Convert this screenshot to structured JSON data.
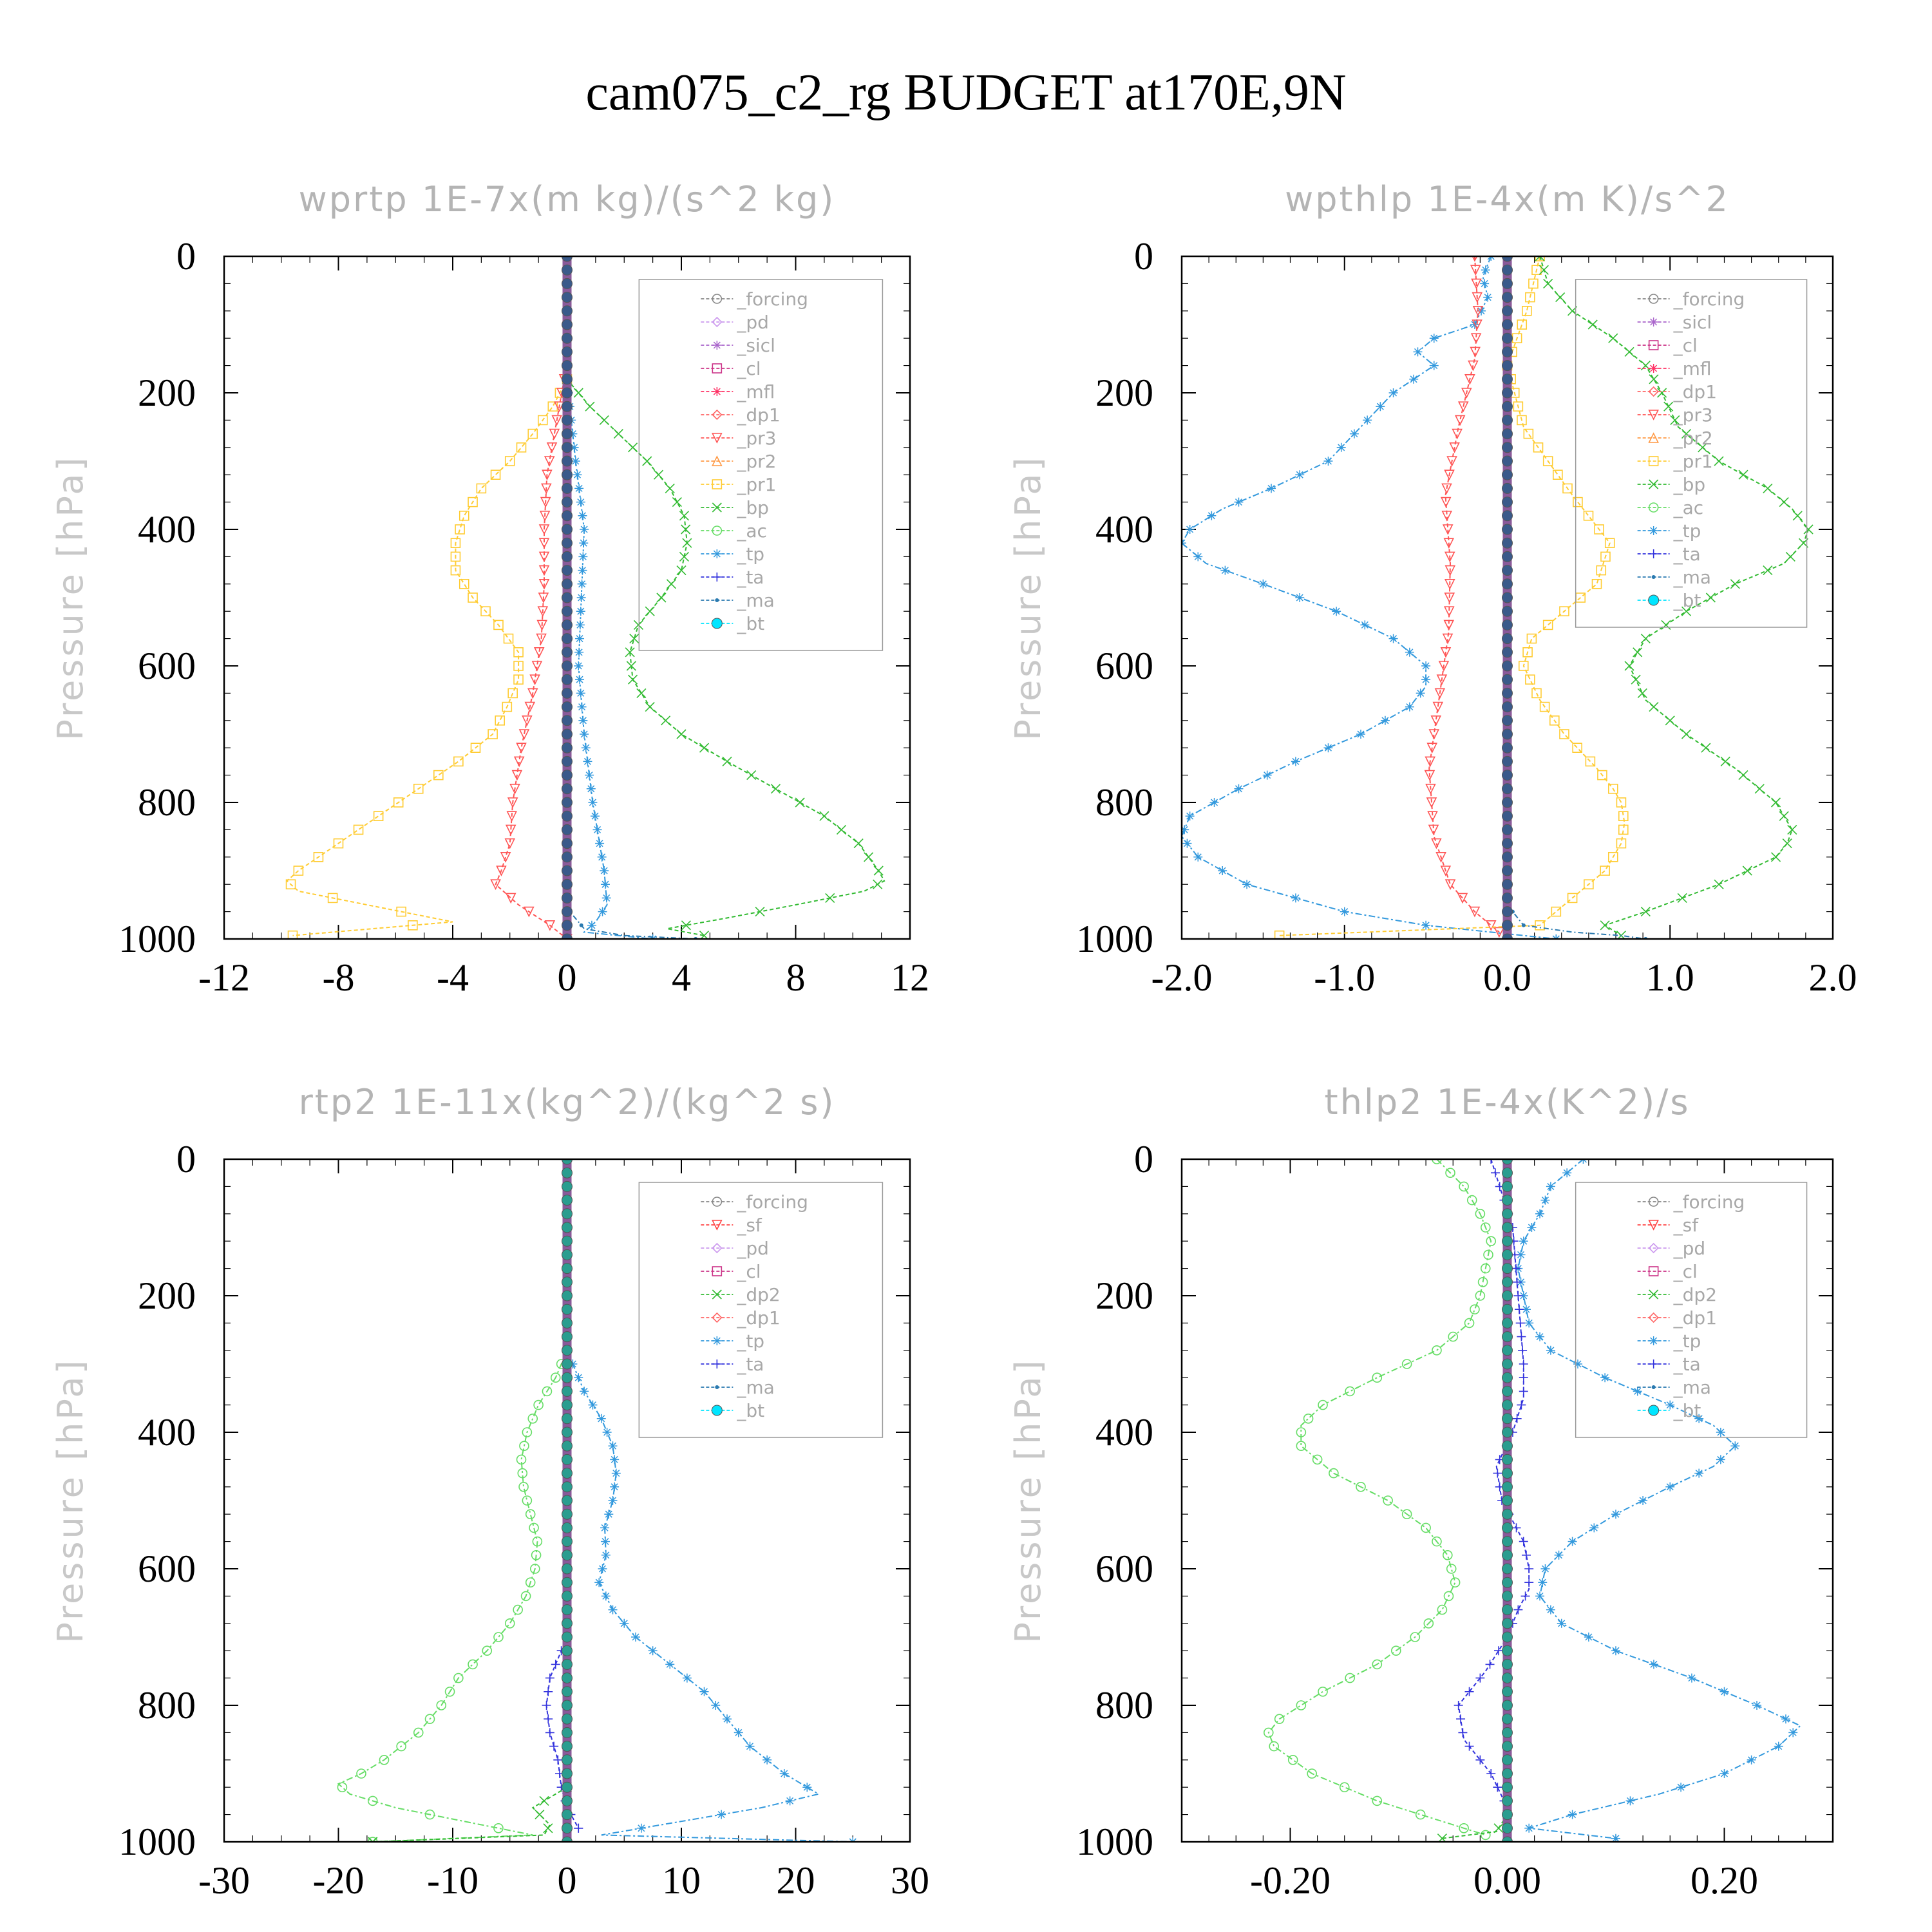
{
  "page": {
    "title": "cam075_c2_rg  BUDGET at170E,9N"
  },
  "chart_data": [
    {
      "type": "line",
      "title": "wprtp  1E-7x(m kg)/(s^2 kg)",
      "ylabel": "Pressure [hPa]",
      "xlim": [
        -12,
        12
      ],
      "ylim": [
        1000,
        0
      ],
      "xticks": [
        -12,
        -8,
        -4,
        0,
        4,
        8,
        12
      ],
      "xtick_labels": [
        "-12",
        "-8",
        "-4",
        "0",
        "4",
        "8",
        "12"
      ],
      "yticks": [
        0,
        200,
        400,
        600,
        800,
        1000
      ],
      "ytick_labels": [
        "0",
        "200",
        "400",
        "600",
        "800",
        "1000"
      ],
      "legend_position": "top-right",
      "legend": [
        "_forcing",
        "_pd",
        "_sicl",
        "_cl",
        "_mfl",
        "_dp1",
        "_pr3",
        "_pr2",
        "_pr1",
        "_bp",
        "_ac",
        "_tp",
        "_ta",
        "_ma",
        "_bt"
      ],
      "series": [
        {
          "name": "_pr1",
          "color": "#ffcc33",
          "marker": "square",
          "dash": "6,4",
          "pressure": [
            180,
            220,
            260,
            300,
            340,
            380,
            420,
            460,
            500,
            540,
            580,
            620,
            660,
            700,
            740,
            780,
            820,
            860,
            900,
            915,
            930,
            950,
            975,
            995
          ],
          "values": [
            0,
            -0.5,
            -1.2,
            -2,
            -3,
            -3.6,
            -3.9,
            -3.9,
            -3.3,
            -2.4,
            -1.7,
            -1.7,
            -2.1,
            -2.6,
            -3.8,
            -5.2,
            -6.6,
            -8,
            -9.4,
            -9.8,
            -9.4,
            -7,
            -4,
            -9.6
          ]
        },
        {
          "name": "_pr3",
          "color": "#ff5555",
          "marker": "triangle-down",
          "dash": "6,4",
          "pressure": [
            180,
            250,
            320,
            400,
            480,
            560,
            640,
            720,
            800,
            860,
            900,
            920,
            950,
            980,
            1000
          ],
          "values": [
            -0.1,
            -0.4,
            -0.7,
            -0.8,
            -0.8,
            -0.9,
            -1.2,
            -1.6,
            -1.9,
            -2,
            -2.3,
            -2.5,
            -1.7,
            -0.6,
            0
          ]
        },
        {
          "name": "_bp",
          "color": "#33bb33",
          "marker": "x",
          "dash": "6,4",
          "pressure": [
            180,
            220,
            260,
            300,
            340,
            380,
            420,
            460,
            500,
            540,
            580,
            620,
            660,
            700,
            740,
            780,
            820,
            860,
            900,
            915,
            930,
            950,
            970,
            985,
            995
          ],
          "values": [
            0,
            0.8,
            1.8,
            2.8,
            3.6,
            4.1,
            4.2,
            4,
            3.3,
            2.5,
            2.2,
            2.3,
            2.9,
            4,
            5.6,
            7.3,
            9,
            10.2,
            10.9,
            11.1,
            10.4,
            8,
            5.5,
            3.5,
            4.8
          ]
        },
        {
          "name": "_tp",
          "color": "#3399dd",
          "marker": "asterisk",
          "dash": "10,4,3,4",
          "pressure": [
            180,
            300,
            400,
            500,
            600,
            700,
            800,
            900,
            950,
            975,
            990,
            1000
          ],
          "values": [
            0,
            0.3,
            0.6,
            0.5,
            0.4,
            0.6,
            0.9,
            1.3,
            1.4,
            1,
            0.6,
            3
          ]
        },
        {
          "name": "_ma",
          "color": "#2a7ab0",
          "marker": "dot",
          "dash": "8,4,2,4",
          "pressure": [
            900,
            960,
            985,
            995,
            1000
          ],
          "values": [
            0,
            0.1,
            0.6,
            2,
            4.5
          ]
        },
        {
          "name": "_bt",
          "color": "#3a5a8a",
          "marker": "circle-filled",
          "dash": "",
          "pressure": [
            0,
            1000
          ],
          "values": [
            0,
            0
          ]
        }
      ]
    },
    {
      "type": "line",
      "title": "wpthlp  1E-4x(m K)/s^2",
      "ylabel": "Pressure [hPa]",
      "xlim": [
        -2.0,
        2.0
      ],
      "ylim": [
        1000,
        0
      ],
      "xticks": [
        -2,
        -1,
        0,
        1,
        2
      ],
      "xtick_labels": [
        "-2.0",
        "-1.0",
        "0.0",
        "1.0",
        "2.0"
      ],
      "yticks": [
        0,
        200,
        400,
        600,
        800,
        1000
      ],
      "ytick_labels": [
        "0",
        "200",
        "400",
        "600",
        "800",
        "1000"
      ],
      "legend_position": "top-right",
      "legend": [
        "_forcing",
        "_sicl",
        "_cl",
        "_mfl",
        "_dp1",
        "_pr3",
        "_pr2",
        "_pr1",
        "_bp",
        "_ac",
        "_tp",
        "_ta",
        "_ma",
        "_bt"
      ],
      "series": [
        {
          "name": "_tp",
          "color": "#3399dd",
          "marker": "asterisk",
          "dash": "10,4,3,4",
          "pressure": [
            0,
            30,
            60,
            100,
            120,
            140,
            160,
            200,
            250,
            300,
            340,
            370,
            400,
            420,
            450,
            480,
            520,
            560,
            600,
            630,
            660,
            700,
            740,
            780,
            820,
            850,
            880,
            920,
            960,
            980,
            990,
            1000
          ],
          "values": [
            -0.1,
            -0.15,
            -0.12,
            -0.2,
            -0.45,
            -0.55,
            -0.45,
            -0.7,
            -0.9,
            -1.1,
            -1.45,
            -1.75,
            -1.95,
            -2,
            -1.85,
            -1.5,
            -1.05,
            -0.7,
            -0.5,
            -0.5,
            -0.6,
            -0.9,
            -1.3,
            -1.65,
            -1.95,
            -2,
            -1.9,
            -1.6,
            -1,
            -0.5,
            -0.1,
            0.3
          ]
        },
        {
          "name": "_pr3",
          "color": "#ff5555",
          "marker": "triangle-down",
          "dash": "6,4",
          "pressure": [
            0,
            80,
            150,
            250,
            350,
            450,
            550,
            650,
            750,
            850,
            920,
            960,
            990
          ],
          "values": [
            -0.2,
            -0.18,
            -0.2,
            -0.3,
            -0.38,
            -0.35,
            -0.36,
            -0.42,
            -0.48,
            -0.45,
            -0.35,
            -0.2,
            -0.05
          ]
        },
        {
          "name": "_pr1",
          "color": "#ffcc33",
          "marker": "square",
          "dash": "6,4",
          "pressure": [
            0,
            80,
            160,
            250,
            350,
            420,
            480,
            520,
            560,
            600,
            650,
            700,
            750,
            780,
            800,
            830,
            860,
            900,
            930,
            960,
            980,
            995
          ],
          "values": [
            0.2,
            0.12,
            0,
            0.1,
            0.4,
            0.63,
            0.55,
            0.35,
            0.15,
            0.1,
            0.2,
            0.35,
            0.55,
            0.65,
            0.7,
            0.72,
            0.7,
            0.6,
            0.45,
            0.3,
            0.2,
            -1.4
          ]
        },
        {
          "name": "_bp",
          "color": "#33bb33",
          "marker": "x",
          "dash": "6,4",
          "pressure": [
            0,
            40,
            80,
            120,
            160,
            200,
            250,
            300,
            340,
            370,
            400,
            420,
            450,
            480,
            520,
            560,
            600,
            650,
            700,
            750,
            800,
            840,
            860,
            880,
            920,
            960,
            980,
            995
          ],
          "values": [
            0.2,
            0.25,
            0.4,
            0.65,
            0.85,
            0.95,
            1.05,
            1.3,
            1.6,
            1.75,
            1.85,
            1.82,
            1.7,
            1.4,
            1.1,
            0.85,
            0.75,
            0.85,
            1.1,
            1.4,
            1.65,
            1.75,
            1.72,
            1.65,
            1.3,
            0.85,
            0.6,
            0.7
          ]
        },
        {
          "name": "_ma",
          "color": "#2a7ab0",
          "marker": "dot",
          "dash": "8,4,2,4",
          "pressure": [
            950,
            980,
            990,
            995,
            1000
          ],
          "values": [
            0,
            0.1,
            0.4,
            0.7,
            0.85
          ]
        },
        {
          "name": "_bt",
          "color": "#3a5a8a",
          "marker": "circle-filled",
          "dash": "",
          "pressure": [
            0,
            1000
          ],
          "values": [
            0,
            0
          ]
        }
      ]
    },
    {
      "type": "line",
      "title": "rtp2  1E-11x(kg^2)/(kg^2 s)",
      "ylabel": "Pressure [hPa]",
      "xlim": [
        -30,
        30
      ],
      "ylim": [
        1000,
        0
      ],
      "xticks": [
        -30,
        -20,
        -10,
        0,
        10,
        20,
        30
      ],
      "xtick_labels": [
        "-30",
        "-20",
        "-10",
        "0",
        "10",
        "20",
        "30"
      ],
      "yticks": [
        0,
        200,
        400,
        600,
        800,
        1000
      ],
      "ytick_labels": [
        "0",
        "200",
        "400",
        "600",
        "800",
        "1000"
      ],
      "legend_position": "top-right",
      "legend": [
        "_forcing",
        "_sf",
        "_pd",
        "_cl",
        "_dp2",
        "_dp1",
        "_tp",
        "_ta",
        "_ma",
        "_bt"
      ],
      "series": [
        {
          "name": "_dp1",
          "color": "#66dd66",
          "marker": "circle",
          "dash": "10,4,3,4",
          "pressure": [
            280,
            320,
            360,
            400,
            440,
            480,
            520,
            560,
            600,
            640,
            680,
            720,
            760,
            800,
            840,
            880,
            900,
            915,
            930,
            950,
            970,
            990,
            1000
          ],
          "values": [
            0,
            -1,
            -2.5,
            -3.5,
            -4,
            -3.8,
            -3.2,
            -2.6,
            -2.8,
            -3.6,
            -5,
            -7,
            -9.5,
            -11,
            -13,
            -16,
            -18,
            -20,
            -19,
            -15,
            -9,
            -3,
            -17
          ]
        },
        {
          "name": "_tp",
          "color": "#3399dd",
          "marker": "asterisk",
          "dash": "10,4,3,4",
          "pressure": [
            280,
            340,
            380,
            420,
            460,
            500,
            540,
            580,
            620,
            660,
            700,
            740,
            780,
            820,
            860,
            900,
            930,
            950,
            970,
            990,
            1000
          ],
          "values": [
            0,
            1.5,
            3,
            4,
            4.3,
            4,
            3.3,
            3.4,
            2.8,
            4,
            6,
            9,
            12,
            14,
            16,
            19,
            22,
            17,
            10,
            3,
            25
          ]
        },
        {
          "name": "_ta",
          "color": "#3333dd",
          "marker": "plus",
          "dash": "6,4",
          "pressure": [
            700,
            760,
            800,
            840,
            880,
            920,
            950,
            980
          ],
          "values": [
            0,
            -1.5,
            -1.8,
            -1.5,
            -0.8,
            -0.5,
            0,
            1
          ]
        },
        {
          "name": "_dp2",
          "color": "#33bb33",
          "marker": "x",
          "dash": "6,4",
          "pressure": [
            920,
            950,
            975,
            990,
            1000
          ],
          "values": [
            0,
            -3,
            -1.5,
            -2,
            -17
          ]
        },
        {
          "name": "_bt",
          "color": "#2a9d8f",
          "marker": "circle-filled",
          "dash": "",
          "pressure": [
            0,
            1000
          ],
          "values": [
            0,
            0
          ]
        }
      ]
    },
    {
      "type": "line",
      "title": "thlp2  1E-4x(K^2)/s",
      "ylabel": "Pressure [hPa]",
      "xlim": [
        -0.3,
        0.3
      ],
      "ylim": [
        1000,
        0
      ],
      "xticks": [
        -0.2,
        0,
        0.2
      ],
      "xtick_labels": [
        "-0.20",
        "0.00",
        "0.20"
      ],
      "yticks": [
        0,
        200,
        400,
        600,
        800,
        1000
      ],
      "ytick_labels": [
        "0",
        "200",
        "400",
        "600",
        "800",
        "1000"
      ],
      "legend_position": "top-right",
      "legend": [
        "_forcing",
        "_sf",
        "_pd",
        "_cl",
        "_dp2",
        "_dp1",
        "_tp",
        "_ta",
        "_ma",
        "_bt"
      ],
      "series": [
        {
          "name": "_dp1",
          "color": "#66dd66",
          "marker": "circle",
          "dash": "10,4,3,4",
          "pressure": [
            0,
            40,
            80,
            120,
            160,
            200,
            240,
            280,
            320,
            360,
            390,
            420,
            460,
            500,
            540,
            580,
            620,
            660,
            700,
            740,
            780,
            820,
            840,
            860,
            900,
            940,
            970,
            990
          ],
          "values": [
            -0.065,
            -0.04,
            -0.025,
            -0.015,
            -0.02,
            -0.025,
            -0.035,
            -0.065,
            -0.12,
            -0.17,
            -0.19,
            -0.19,
            -0.16,
            -0.11,
            -0.075,
            -0.055,
            -0.048,
            -0.06,
            -0.085,
            -0.12,
            -0.17,
            -0.21,
            -0.22,
            -0.215,
            -0.18,
            -0.12,
            -0.06,
            -0.02
          ]
        },
        {
          "name": "_tp",
          "color": "#3399dd",
          "marker": "asterisk",
          "dash": "10,4,3,4",
          "pressure": [
            0,
            40,
            80,
            120,
            160,
            200,
            240,
            280,
            320,
            360,
            390,
            420,
            450,
            480,
            520,
            560,
            600,
            640,
            680,
            720,
            760,
            800,
            830,
            860,
            900,
            930,
            960,
            980,
            995
          ],
          "values": [
            0.07,
            0.04,
            0.03,
            0.015,
            0.01,
            0.015,
            0.02,
            0.04,
            0.09,
            0.15,
            0.19,
            0.21,
            0.19,
            0.15,
            0.1,
            0.06,
            0.035,
            0.03,
            0.05,
            0.1,
            0.17,
            0.23,
            0.27,
            0.25,
            0.2,
            0.14,
            0.06,
            0.02,
            0.1
          ]
        },
        {
          "name": "_ta",
          "color": "#3333dd",
          "marker": "plus",
          "dash": "6,4",
          "pressure": [
            0,
            100,
            200,
            300,
            350,
            400,
            450,
            500,
            560,
            600,
            630,
            660,
            700,
            750,
            800,
            850,
            900,
            950,
            990
          ],
          "values": [
            -0.015,
            0.005,
            0.01,
            0.015,
            0.015,
            0.005,
            -0.01,
            -0.005,
            0.015,
            0.02,
            0.02,
            0.01,
            0,
            -0.02,
            -0.045,
            -0.04,
            -0.015,
            0,
            0
          ]
        },
        {
          "name": "_dp2",
          "color": "#33bb33",
          "marker": "x",
          "dash": "6,4",
          "pressure": [
            960,
            985,
            995
          ],
          "values": [
            0,
            -0.01,
            -0.06
          ]
        },
        {
          "name": "_bt",
          "color": "#2a9d8f",
          "marker": "circle-filled",
          "dash": "",
          "pressure": [
            0,
            1000
          ],
          "values": [
            0,
            0
          ]
        }
      ]
    }
  ]
}
